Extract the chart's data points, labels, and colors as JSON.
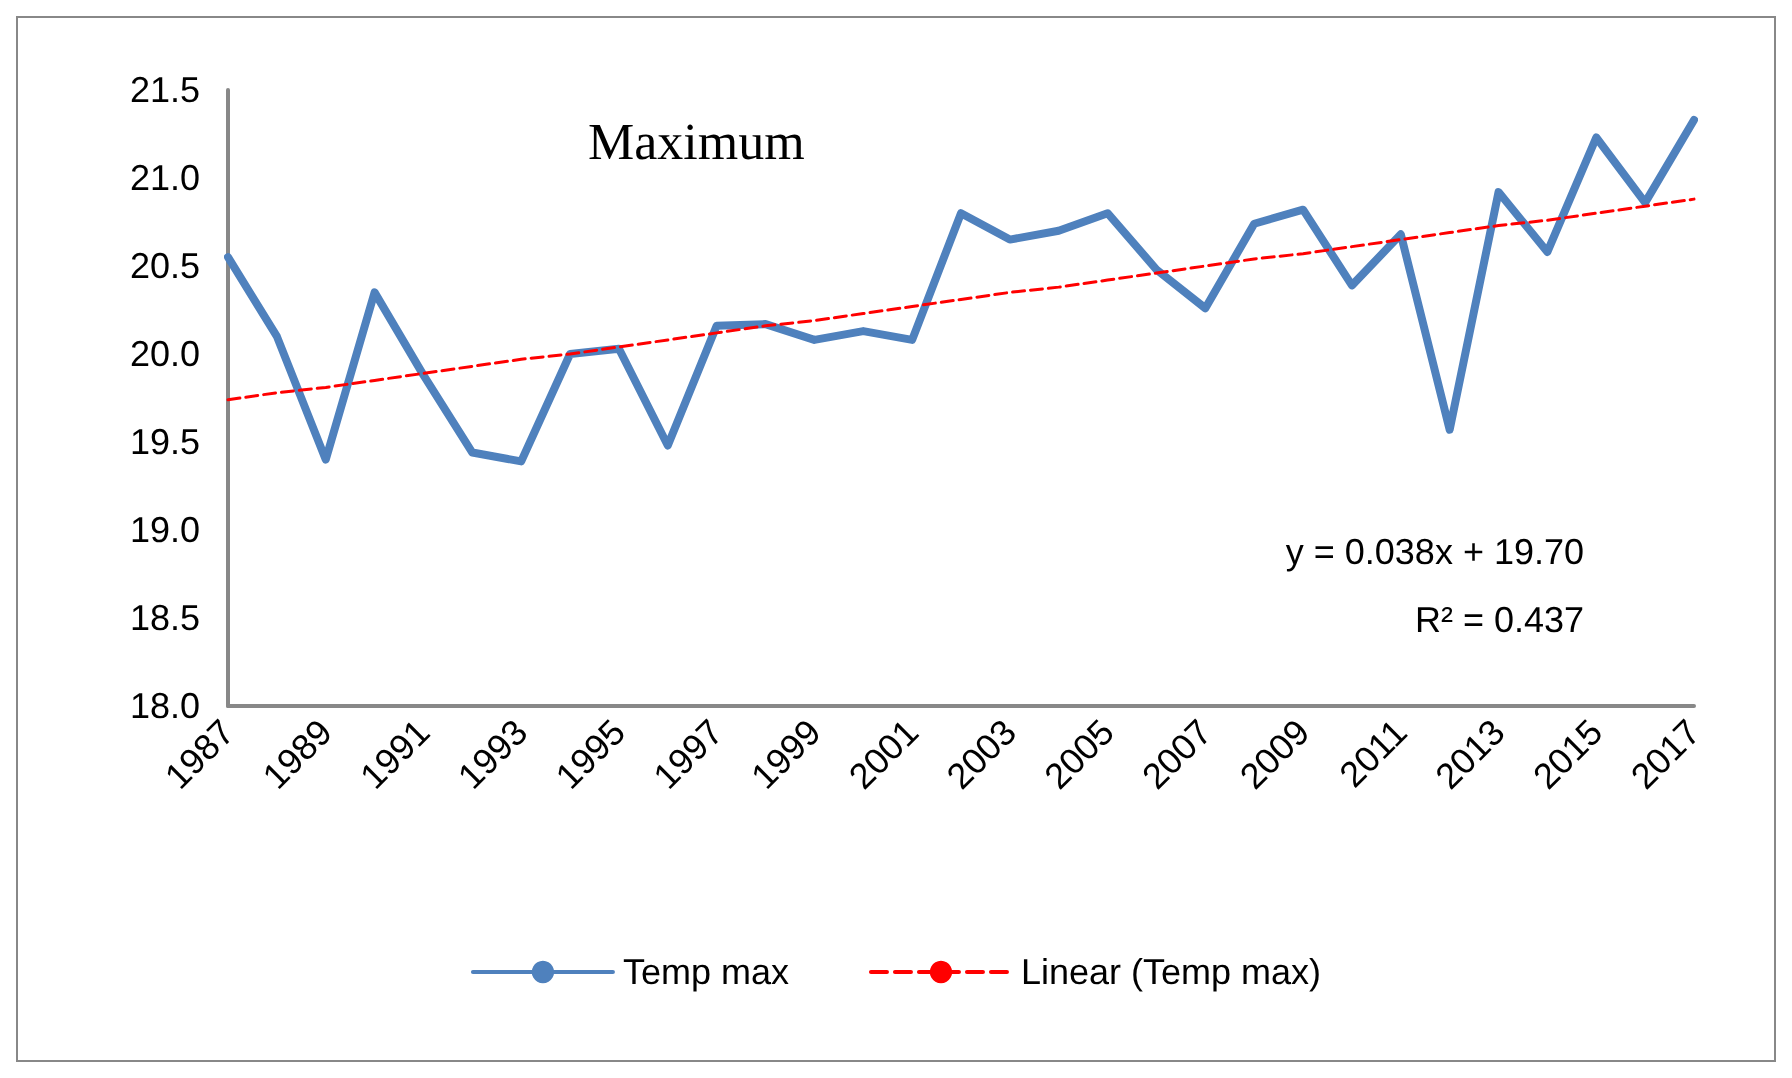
{
  "chart_data": {
    "type": "line",
    "title": "Maximum",
    "categories": [
      "1987",
      null,
      "1989",
      null,
      "1991",
      null,
      "1993",
      null,
      "1995",
      null,
      "1997",
      null,
      "1999",
      null,
      "2001",
      null,
      "2003",
      null,
      "2005",
      null,
      "2007",
      null,
      "2009",
      null,
      "2011",
      null,
      "2013",
      null,
      "2015",
      null,
      "2017"
    ],
    "series": [
      {
        "name": "Temp max",
        "color": "#4f81bd",
        "line_style": "solid",
        "values": [
          20.55,
          20.1,
          19.4,
          20.35,
          19.88,
          19.44,
          19.39,
          20.0,
          20.03,
          19.48,
          20.16,
          20.17,
          20.08,
          20.13,
          20.08,
          20.8,
          20.65,
          20.7,
          20.8,
          20.48,
          20.26,
          20.74,
          20.82,
          20.39,
          20.68,
          19.57,
          20.92,
          20.58,
          21.23,
          20.86,
          21.33
        ]
      },
      {
        "name": "Linear (Temp max)",
        "type": "line",
        "color": "#ff0000",
        "line_style": "dashed",
        "values": [
          19.74,
          19.78,
          19.81,
          19.85,
          19.89,
          19.93,
          19.97,
          20.0,
          20.04,
          20.08,
          20.12,
          20.16,
          20.19,
          20.23,
          20.27,
          20.31,
          20.35,
          20.38,
          20.42,
          20.46,
          20.5,
          20.54,
          20.57,
          20.61,
          20.65,
          20.69,
          20.73,
          20.76,
          20.8,
          20.84,
          20.88
        ]
      }
    ],
    "ylim": [
      18,
      21.5
    ],
    "yticks": [
      {
        "value": 18,
        "label": "18.0"
      },
      {
        "value": 18.5,
        "label": "18.5"
      },
      {
        "value": 19,
        "label": "19.0"
      },
      {
        "value": 19.5,
        "label": "19.5"
      },
      {
        "value": 20,
        "label": "20.0"
      },
      {
        "value": 20.5,
        "label": "20.5"
      },
      {
        "value": 21,
        "label": "21.0"
      },
      {
        "value": 21.5,
        "label": "21.5"
      }
    ],
    "annotations": [
      "y = 0.038x + 19.70",
      "R² = 0.437"
    ],
    "legend": "bottom",
    "grid": false,
    "marker": "none"
  }
}
